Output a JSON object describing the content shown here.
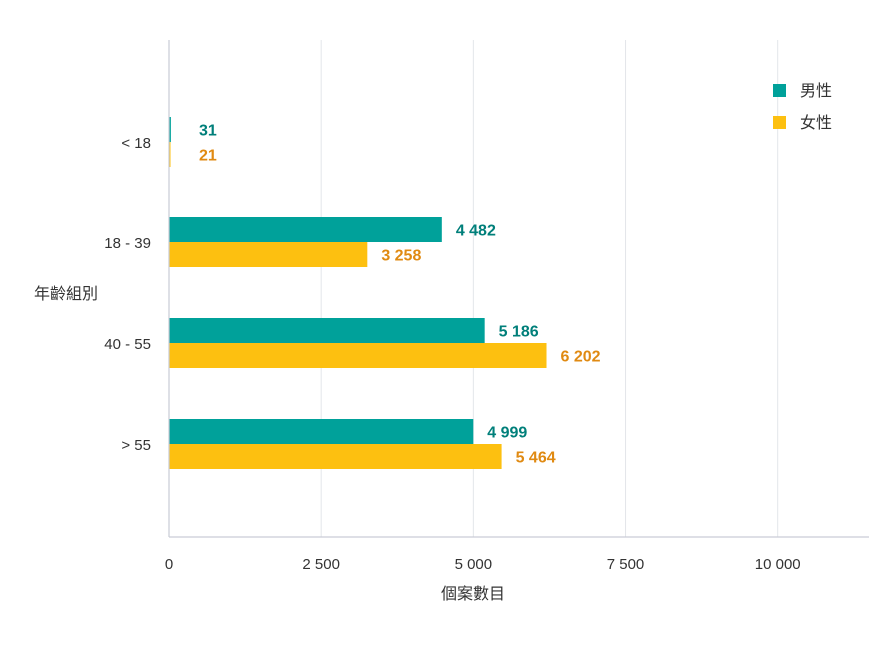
{
  "chart_data": {
    "type": "bar",
    "orientation": "horizontal",
    "categories": [
      "< 18",
      "18 - 39",
      "40 - 55",
      "> 55"
    ],
    "series": [
      {
        "name": "男性",
        "color": "#00a19a",
        "label_color": "#007f7a",
        "values": [
          31,
          4482,
          5186,
          4999
        ],
        "labels": [
          "31",
          "4 482",
          "5 186",
          "4 999"
        ]
      },
      {
        "name": "女性",
        "color": "#fdc010",
        "label_color": "#e08a12",
        "values": [
          21,
          3258,
          6202,
          5464
        ],
        "labels": [
          "21",
          "3 258",
          "6 202",
          "5 464"
        ]
      }
    ],
    "xlabel": "個案數目",
    "ylabel": "年齡組別",
    "xlim": [
      0,
      11500
    ],
    "xticks": [
      0,
      2500,
      5000,
      7500,
      10000
    ],
    "xtick_labels": [
      "0",
      "2 500",
      "5 000",
      "7 500",
      "10 000"
    ],
    "grid": true,
    "legend_position": "top-right"
  }
}
